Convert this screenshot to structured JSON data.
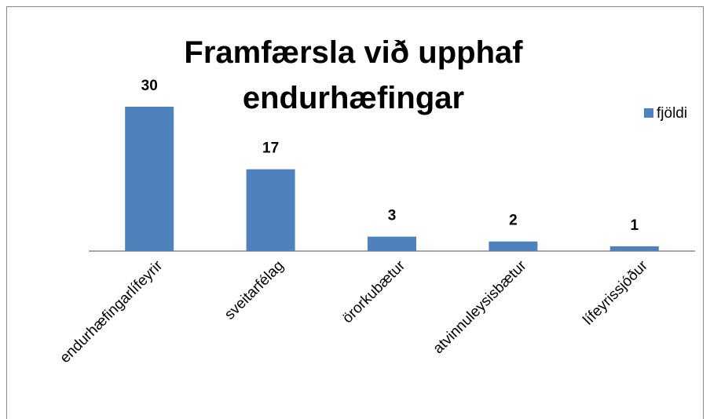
{
  "chart_data": {
    "type": "bar",
    "title": "Framfærsla við upphaf endurhæfingar",
    "categories": [
      "endurhæfingarlífeyrir",
      "sveitarfélag",
      "örorkubætur",
      "atvinnuleysisbætur",
      "lífeyrissjóður"
    ],
    "series": [
      {
        "name": "fjöldi",
        "color": "#4f81bd",
        "values": [
          30,
          17,
          3,
          2,
          1
        ]
      }
    ],
    "legend": "right"
  }
}
